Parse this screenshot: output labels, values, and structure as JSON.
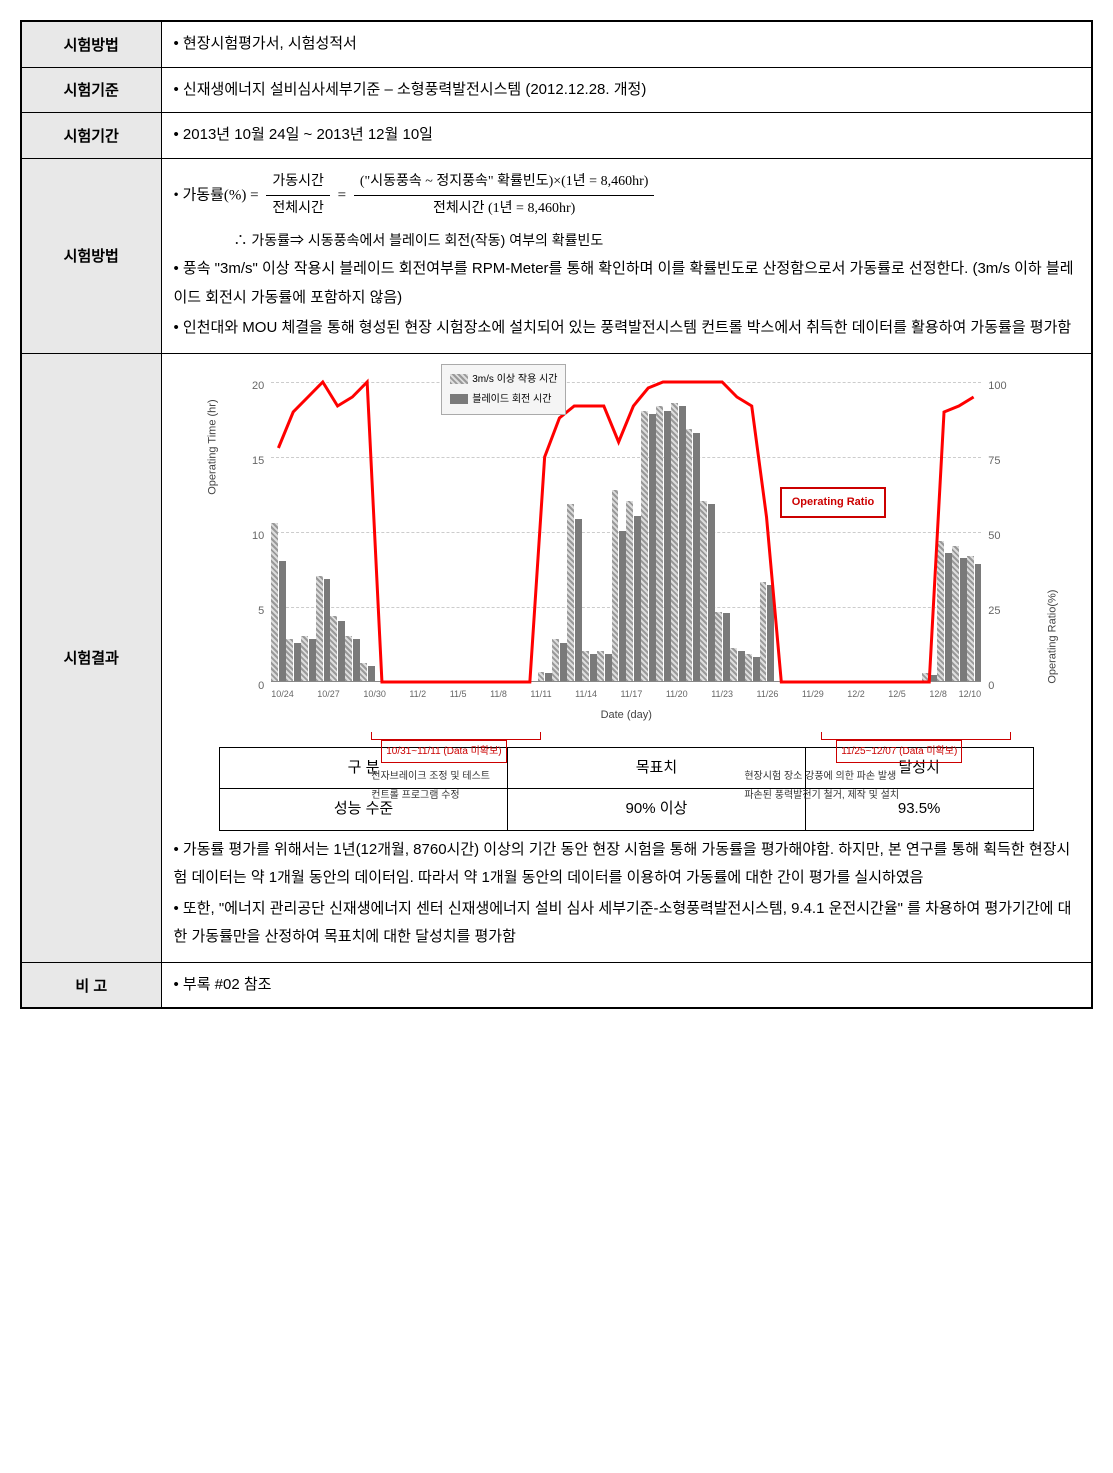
{
  "rows": {
    "test_method_1": {
      "label": "시험방법",
      "content": "• 현장시험평가서, 시험성적서"
    },
    "test_standard": {
      "label": "시험기준",
      "content": "• 신재생에너지 설비심사세부기준 – 소형풍력발전시스템 (2012.12.28. 개정)"
    },
    "test_period": {
      "label": "시험기간",
      "content": "• 2013년 10월 24일 ~ 2013년 12월 10일"
    },
    "test_method_2": {
      "label": "시험방법",
      "formula_lead": "• 가동률(%) =",
      "frac1_num": "가동시간",
      "frac1_den": "전체시간",
      "eq": " = ",
      "frac2_num": "(\"시동풍속 ~ 정지풍속\" 확률빈도)×(1년 = 8,460hr)",
      "frac2_den": "전체시간 (1년 = 8,460hr)",
      "therefore": "∴ 가동률⇒ 시동풍속에서 블레이드 회전(작동) 여부의 확률빈도",
      "p1": "• 풍속 \"3m/s\" 이상 작용시 블레이드 회전여부를 RPM-Meter를 통해 확인하며 이를 확률빈도로 산정함으로서 가동률로 선정한다. (3m/s 이하 블레이드 회전시 가동률에 포함하지 않음)",
      "p2": "• 인천대와 MOU 체결을 통해 형성된 현장 시험장소에 설치되어 있는 풍력발전시스템 컨트롤 박스에서 취득한 데이터를 활용하여 가동률을 평가함"
    },
    "test_result": {
      "label": "시험결과",
      "p1": "• 가동률 평가를 위해서는 1년(12개월, 8760시간) 이상의 기간 동안 현장 시험을 통해 가동률을 평가해야함. 하지만, 본 연구를 통해 획득한 현장시험 데이터는 약 1개월 동안의 데이터임. 따라서 약 1개월 동안의 데이터를 이용하여 가동률에 대한 간이 평가를 실시하였음",
      "p2": "• 또한, \"에너지 관리공단 신재생에너지 센터 신재생에너지 설비 심사 세부기준-소형풍력발전시스템, 9.4.1 운전시간율\" 를 차용하여 평가기간에 대한 가동률만을 산정하여 목표치에 대한 달성치를 평가함"
    },
    "remark": {
      "label": "비    고",
      "content": "• 부록 #02 참조"
    }
  },
  "chart": {
    "type": "bar+line",
    "y_left_label": "Operating Time (hr)",
    "y_right_label": "Operating Ratio(%)",
    "x_label": "Date (day)",
    "y_left_max": 20,
    "y_left_ticks": [
      0,
      5,
      10,
      15,
      20
    ],
    "y_right_max": 100,
    "y_right_ticks": [
      0,
      25,
      50,
      75,
      100
    ],
    "legend": [
      {
        "label": "3m/s 이상 작용 시간",
        "color_css": "repeating-linear-gradient(45deg, #999 0 2px, #ddd 2px 4px)"
      },
      {
        "label": "블레이드 회전 시간",
        "color": "#7a7a7a"
      }
    ],
    "operating_ratio_label": "Operating Ratio",
    "line_color": "#ff0000",
    "grid_color": "#cccccc",
    "x_categories": [
      "10/24",
      "10/25",
      "10/26",
      "10/27",
      "10/28",
      "10/29",
      "10/30",
      "10/31",
      "11/1",
      "11/2",
      "11/3",
      "11/4",
      "11/5",
      "11/6",
      "11/7",
      "11/8",
      "11/9",
      "11/10",
      "11/11",
      "11/12",
      "11/13",
      "11/14",
      "11/15",
      "11/16",
      "11/17",
      "11/18",
      "11/19",
      "11/20",
      "11/21",
      "11/22",
      "11/23",
      "11/24",
      "11/25",
      "11/26",
      "11/27",
      "11/28",
      "11/29",
      "11/30",
      "12/1",
      "12/2",
      "12/3",
      "12/4",
      "12/5",
      "12/6",
      "12/7",
      "12/8",
      "12/9",
      "12/10"
    ],
    "x_visible_labels": [
      "10/24",
      "10/27",
      "10/30",
      "11/2",
      "11/5",
      "11/8",
      "11/11",
      "11/14",
      "11/17",
      "11/20",
      "11/23",
      "11/26",
      "11/29",
      "12/2",
      "12/5",
      "12/8",
      "12/10"
    ],
    "series_3ms": [
      10.5,
      2.8,
      3.0,
      7.0,
      4.3,
      3.0,
      1.2,
      0,
      0,
      0,
      0,
      0,
      0,
      0,
      0,
      0,
      0,
      0,
      0.6,
      2.8,
      11.8,
      2.0,
      2.0,
      12.7,
      12.0,
      18.0,
      18.3,
      18.5,
      16.8,
      12.0,
      4.6,
      2.2,
      1.8,
      6.6,
      0,
      0,
      0,
      0,
      0,
      0,
      0,
      0,
      0,
      0,
      0.5,
      9.3,
      9.0,
      8.3
    ],
    "series_blade": [
      8.0,
      2.5,
      2.8,
      6.8,
      4.0,
      2.8,
      1.0,
      0,
      0,
      0,
      0,
      0,
      0,
      0,
      0,
      0,
      0,
      0,
      0.5,
      2.5,
      10.8,
      1.8,
      1.8,
      10.0,
      11.0,
      17.8,
      18.0,
      18.3,
      16.5,
      11.8,
      4.5,
      2.0,
      1.6,
      6.4,
      0,
      0,
      0,
      0,
      0,
      0,
      0,
      0,
      0,
      0,
      0.4,
      8.5,
      8.2,
      7.8
    ],
    "line_ratio": [
      78,
      90,
      95,
      100,
      92,
      95,
      100,
      0,
      0,
      0,
      0,
      0,
      0,
      0,
      0,
      0,
      0,
      0,
      75,
      88,
      92,
      92,
      92,
      80,
      92,
      98,
      100,
      100,
      100,
      100,
      100,
      95,
      92,
      55,
      0,
      0,
      0,
      0,
      0,
      0,
      0,
      0,
      0,
      0,
      0,
      90,
      92,
      95
    ],
    "annotations": [
      {
        "text": "10/31~11/11 (Data 미확보)",
        "note": "전자브레이크 조정 및 테스트\n컨트롤 프로그램 수정"
      },
      {
        "text": "11/25~12/07 (Data 미확보)",
        "note": "현장시험 장소 강풍에 의한 파손 발생\n파손된 풍력발전기 철거, 제작 및 설치"
      }
    ]
  },
  "result_table": {
    "headers": [
      "구   분",
      "목표치",
      "달성치"
    ],
    "row": [
      "성능 수준",
      "90% 이상",
      "93.5%"
    ]
  }
}
